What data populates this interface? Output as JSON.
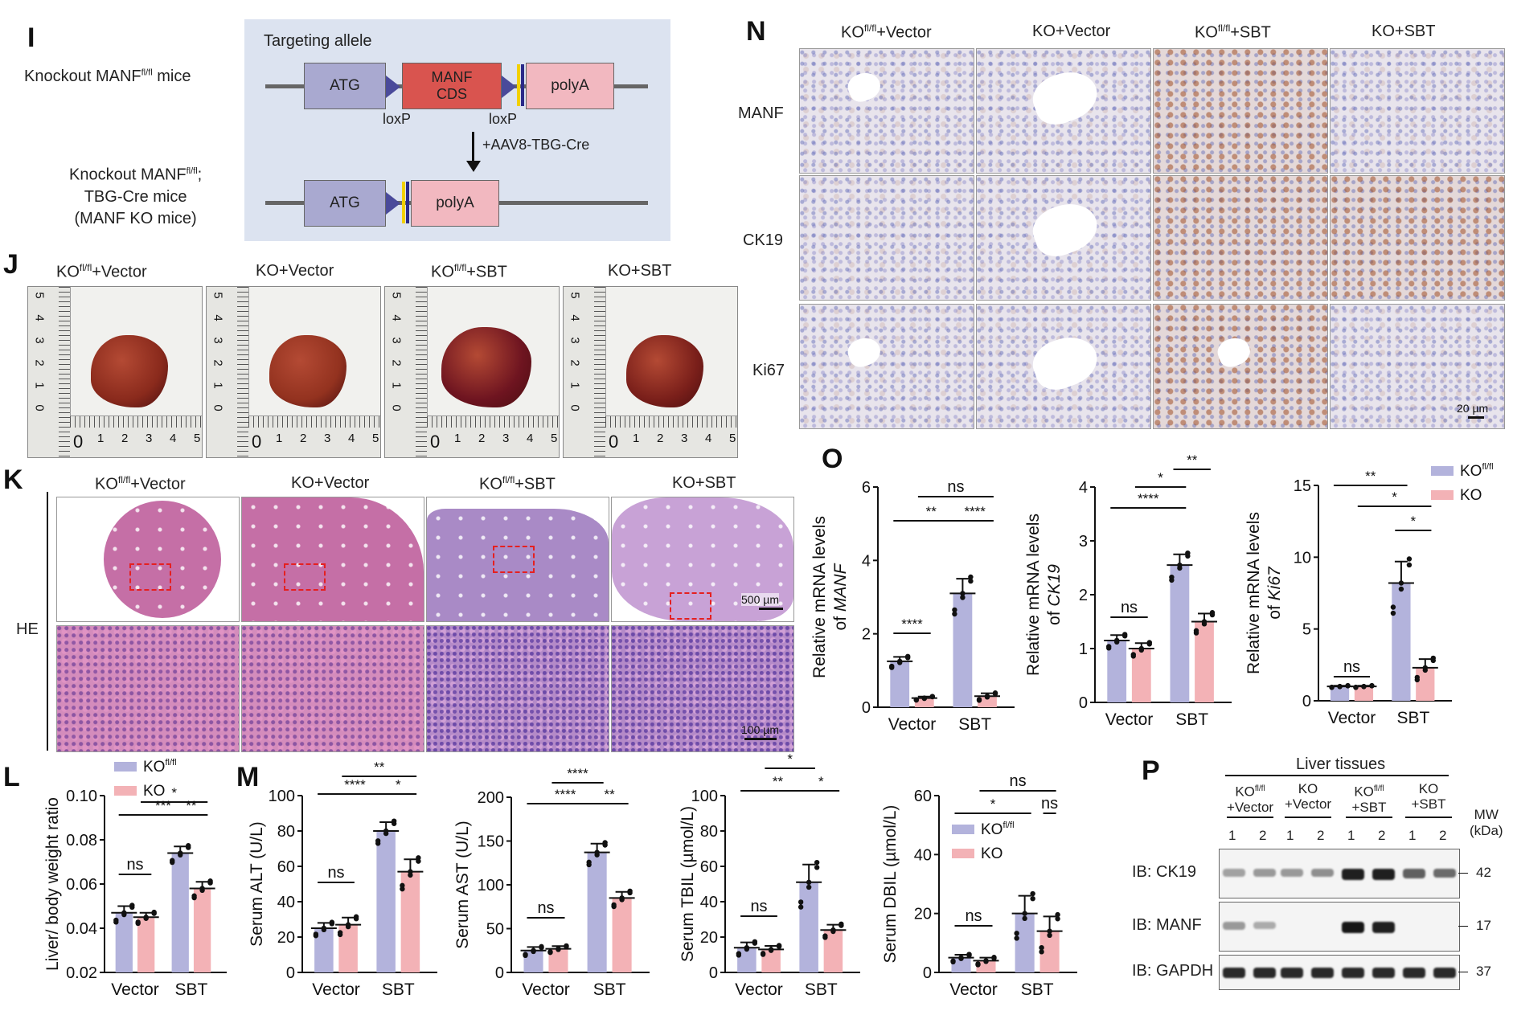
{
  "panel_letters": {
    "I": "I",
    "J": "J",
    "K": "K",
    "L": "L",
    "M": "M",
    "N": "N",
    "O": "O",
    "P": "P"
  },
  "panel_I": {
    "left_label_1_pre": "Knockout MANF",
    "left_label_1_sup": "fl/fl",
    "left_label_1_post": " mice",
    "left_label_2_line1_pre": "Knockout MANF",
    "left_label_2_line1_sup": "fl/fl",
    "left_label_2_line1_post": ";",
    "left_label_2_line2": "TBG-Cre mice",
    "left_label_2_line3": "(MANF KO mice)",
    "box_title": "Targeting allele",
    "atg": "ATG",
    "manf_cds_line1": "MANF",
    "manf_cds_line2": "CDS",
    "polya": "polyA",
    "loxp": "loxP",
    "arrow_label": "+AAV8-TBG-Cre",
    "colors": {
      "box_bg": "#dce3f0",
      "atg": "#a9a9d0",
      "cds": "#d9544f",
      "polya": "#f2b8c0"
    }
  },
  "groups": {
    "flfl_vector_pre": "KO",
    "flfl_sup": "fl/fl",
    "flfl_vector_post": "+Vector",
    "ko_vector": "KO+Vector",
    "flfl_sbt_pre": "KO",
    "flfl_sbt_post": "+SBT",
    "ko_sbt": "KO+SBT"
  },
  "panel_J": {
    "ruler_ticks": [
      "0",
      "1",
      "2",
      "3",
      "4",
      "5"
    ]
  },
  "panel_K": {
    "row_label": "HE",
    "scale_low": "500 µm",
    "scale_high": "100 µm"
  },
  "panel_N": {
    "rows": [
      "MANF",
      "CK19",
      "Ki67"
    ],
    "scale": "20 µm"
  },
  "legend": {
    "flfl_pre": "KO",
    "flfl_sup": "fl/fl",
    "ko": "KO"
  },
  "colors": {
    "flfl": "#b3b3dc",
    "ko": "#f3b2b6"
  },
  "chart_data": [
    {
      "id": "L",
      "type": "bar",
      "ylabel": "Liver/ body weight ratio",
      "categories": [
        "Vector",
        "SBT"
      ],
      "ylim": [
        0.02,
        0.1
      ],
      "yticks": [
        "0.02",
        "0.04",
        "0.06",
        "0.08",
        "0.10"
      ],
      "series": [
        {
          "name": "KO fl/fl",
          "values": [
            0.047,
            0.074
          ],
          "err": [
            0.003,
            0.003
          ]
        },
        {
          "name": "KO",
          "values": [
            0.045,
            0.058
          ],
          "err": [
            0.002,
            0.003
          ]
        }
      ],
      "annotations": [
        "ns",
        "***",
        "*",
        "**"
      ]
    },
    {
      "id": "M1",
      "type": "bar",
      "ylabel": "Serum ALT (U/L)",
      "categories": [
        "Vector",
        "SBT"
      ],
      "ylim": [
        0,
        100
      ],
      "yticks": [
        "0",
        "20",
        "40",
        "60",
        "80",
        "100"
      ],
      "series": [
        {
          "name": "KO fl/fl",
          "values": [
            25,
            80
          ],
          "err": [
            3,
            5
          ]
        },
        {
          "name": "KO",
          "values": [
            27,
            57
          ],
          "err": [
            4,
            7
          ]
        }
      ],
      "annotations": [
        "ns",
        "****",
        "**",
        "*"
      ]
    },
    {
      "id": "M2",
      "type": "bar",
      "ylabel": "Serum AST (U/L)",
      "categories": [
        "Vector",
        "SBT"
      ],
      "ylim": [
        0,
        200
      ],
      "yticks": [
        "0",
        "50",
        "100",
        "150",
        "200"
      ],
      "series": [
        {
          "name": "KO fl/fl",
          "values": [
            25,
            137
          ],
          "err": [
            4,
            10
          ]
        },
        {
          "name": "KO",
          "values": [
            27,
            85
          ],
          "err": [
            3,
            7
          ]
        }
      ],
      "annotations": [
        "ns",
        "****",
        "****",
        "**"
      ]
    },
    {
      "id": "M3",
      "type": "bar",
      "ylabel": "Serum TBIL (µmol/L)",
      "categories": [
        "Vector",
        "SBT"
      ],
      "ylim": [
        0,
        100
      ],
      "yticks": [
        "0",
        "20",
        "40",
        "60",
        "80",
        "100"
      ],
      "series": [
        {
          "name": "KO fl/fl",
          "values": [
            14,
            51
          ],
          "err": [
            3,
            10
          ]
        },
        {
          "name": "KO",
          "values": [
            13,
            24
          ],
          "err": [
            2,
            3
          ]
        }
      ],
      "annotations": [
        "ns",
        "**",
        "*",
        "*"
      ]
    },
    {
      "id": "M4",
      "type": "bar",
      "ylabel": "Serum DBIL (µmol/L)",
      "categories": [
        "Vector",
        "SBT"
      ],
      "ylim": [
        0,
        60
      ],
      "yticks": [
        "0",
        "20",
        "40",
        "60"
      ],
      "series": [
        {
          "name": "KO fl/fl",
          "values": [
            5,
            20
          ],
          "err": [
            1,
            6
          ]
        },
        {
          "name": "KO",
          "values": [
            4,
            14
          ],
          "err": [
            1,
            5
          ]
        }
      ],
      "annotations": [
        "ns",
        "*",
        "ns",
        "ns"
      ]
    },
    {
      "id": "O1",
      "type": "bar",
      "ylabel_pre": "Relative mRNA levels",
      "ylabel_gene": "MANF",
      "ylabel_of": "of ",
      "categories": [
        "Vector",
        "SBT"
      ],
      "ylim": [
        0,
        6
      ],
      "yticks": [
        "0",
        "2",
        "4",
        "6"
      ],
      "series": [
        {
          "name": "KO fl/fl",
          "values": [
            1.25,
            3.1
          ],
          "err": [
            0.12,
            0.4
          ]
        },
        {
          "name": "KO",
          "values": [
            0.25,
            0.3
          ],
          "err": [
            0.04,
            0.08
          ]
        }
      ],
      "annotations": [
        "****",
        "**",
        "ns",
        "****"
      ]
    },
    {
      "id": "O2",
      "type": "bar",
      "ylabel_pre": "Relative mRNA levels",
      "ylabel_gene": "CK19",
      "ylabel_of": "of ",
      "categories": [
        "Vector",
        "SBT"
      ],
      "ylim": [
        0,
        4
      ],
      "yticks": [
        "0",
        "1",
        "2",
        "3",
        "4"
      ],
      "series": [
        {
          "name": "KO fl/fl",
          "values": [
            1.15,
            2.55
          ],
          "err": [
            0.1,
            0.2
          ]
        },
        {
          "name": "KO",
          "values": [
            1.0,
            1.5
          ],
          "err": [
            0.1,
            0.15
          ]
        }
      ],
      "annotations": [
        "ns",
        "****",
        "*",
        "**"
      ]
    },
    {
      "id": "O3",
      "type": "bar",
      "ylabel_pre": "Relative mRNA levels",
      "ylabel_gene": "Ki67",
      "ylabel_of": "of ",
      "categories": [
        "Vector",
        "SBT"
      ],
      "ylim": [
        0,
        15
      ],
      "yticks": [
        "0",
        "5",
        "10",
        "15"
      ],
      "series": [
        {
          "name": "KO fl/fl",
          "values": [
            1.0,
            8.2
          ],
          "err": [
            0.05,
            1.5
          ]
        },
        {
          "name": "KO",
          "values": [
            1.0,
            2.3
          ],
          "err": [
            0.05,
            0.6
          ]
        }
      ],
      "annotations": [
        "ns",
        "**",
        "*",
        "*"
      ]
    }
  ],
  "panel_P": {
    "title": "Liver tissues",
    "lanes": [
      {
        "l1_pre": "KO",
        "l1_sup": "fl/fl",
        "l2": "+Vector"
      },
      {
        "l1_pre": "KO",
        "l1_sup": "",
        "l2": "+Vector"
      },
      {
        "l1_pre": "KO",
        "l1_sup": "fl/fl",
        "l2": "+SBT"
      },
      {
        "l1_pre": "KO",
        "l1_sup": "",
        "l2": "+SBT"
      }
    ],
    "lane_numbers": [
      "1",
      "2",
      "1",
      "2",
      "1",
      "2",
      "1",
      "2"
    ],
    "mw_label_1": "MW",
    "mw_label_2": "(kDa)",
    "blots": [
      {
        "label": "IB: CK19",
        "mw": "42",
        "intensity": [
          0.25,
          0.3,
          0.3,
          0.35,
          0.95,
          0.95,
          0.6,
          0.55
        ]
      },
      {
        "label": "IB: MANF",
        "mw": "17",
        "intensity": [
          0.3,
          0.2,
          0.0,
          0.0,
          1.0,
          0.95,
          0.0,
          0.0
        ]
      },
      {
        "label": "IB: GAPDH",
        "mw": "37",
        "intensity": [
          0.9,
          0.9,
          0.9,
          0.9,
          0.9,
          0.9,
          0.9,
          0.9
        ]
      }
    ]
  }
}
